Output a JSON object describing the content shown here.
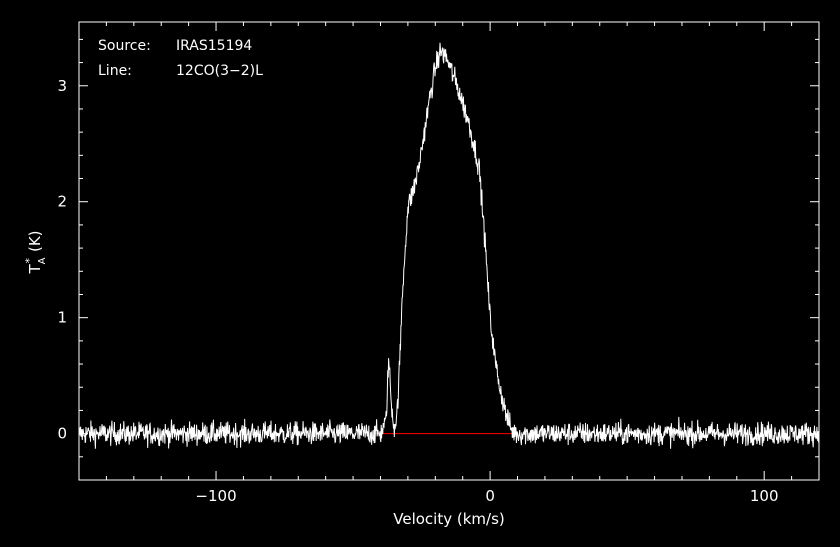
{
  "annotations": {
    "source_label": "Source:",
    "source_value": "IRAS15194",
    "line_label": "Line:",
    "line_value": "12CO(3−2)L"
  },
  "chart_data": {
    "type": "line",
    "title": "",
    "xlabel": "Velocity (km/s)",
    "ylabel": "T*A (K)",
    "xlim": [
      -150,
      120
    ],
    "ylim": [
      -0.4,
      3.55
    ],
    "x_tick_labels": [
      {
        "value": -100,
        "label": "−100"
      },
      {
        "value": 0,
        "label": "0"
      },
      {
        "value": 100,
        "label": "100"
      }
    ],
    "y_tick_labels": [
      {
        "value": 0,
        "label": "0"
      },
      {
        "value": 1,
        "label": "1"
      },
      {
        "value": 2,
        "label": "2"
      },
      {
        "value": 3,
        "label": "3"
      }
    ],
    "x_minor_step": 10,
    "y_minor_step": 0.2,
    "grid": false,
    "colors": {
      "background": "#000000",
      "foreground": "#ffffff",
      "baseline": "#ff0000"
    },
    "series": [
      {
        "values_profile": [
          [
            -150,
            0
          ],
          [
            -40,
            0
          ],
          [
            -38,
            0.1
          ],
          [
            -37,
            0.65
          ],
          [
            -36,
            0.25
          ],
          [
            -35,
            0.05
          ],
          [
            -34,
            0.15
          ],
          [
            -33,
            0.6
          ],
          [
            -32,
            1.2
          ],
          [
            -31,
            1.6
          ],
          [
            -30,
            1.95
          ],
          [
            -28,
            2.1
          ],
          [
            -26,
            2.3
          ],
          [
            -24,
            2.6
          ],
          [
            -22,
            2.9
          ],
          [
            -20,
            3.15
          ],
          [
            -18,
            3.3
          ],
          [
            -16,
            3.25
          ],
          [
            -14,
            3.12
          ],
          [
            -12,
            3.0
          ],
          [
            -10,
            2.85
          ],
          [
            -8,
            2.7
          ],
          [
            -6,
            2.5
          ],
          [
            -4,
            2.3
          ],
          [
            -2,
            1.7
          ],
          [
            0,
            1.0
          ],
          [
            2,
            0.6
          ],
          [
            4,
            0.35
          ],
          [
            6,
            0.15
          ],
          [
            8,
            0.02
          ],
          [
            10,
            0
          ],
          [
            120,
            0
          ]
        ],
        "noise_rms": 0.05,
        "baseline": 0,
        "baseline_from": -40,
        "baseline_to": 8
      }
    ]
  }
}
